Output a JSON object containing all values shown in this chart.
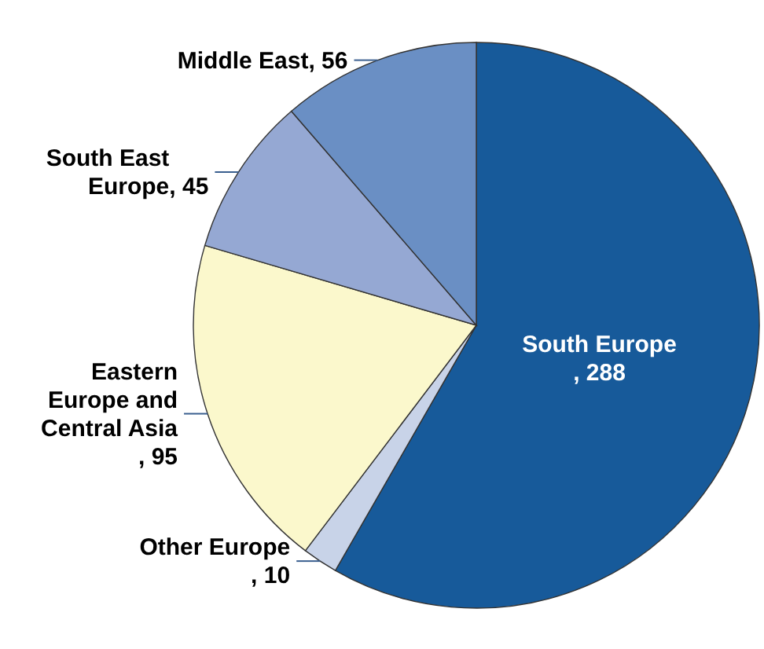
{
  "chart_data": {
    "type": "pie",
    "categories": [
      "South Europe",
      "Other Europe",
      "Eastern Europe and Central Asia",
      "South East Europe",
      "Middle East"
    ],
    "values": [
      288,
      10,
      95,
      45,
      56
    ],
    "value_labels": [
      ", 288",
      ", 10",
      ", 95",
      ", 45",
      ", 56"
    ],
    "colors": [
      "#175a9a",
      "#c8d3e8",
      "#fbf8cc",
      "#95a8d3",
      "#6a8fc4"
    ]
  }
}
